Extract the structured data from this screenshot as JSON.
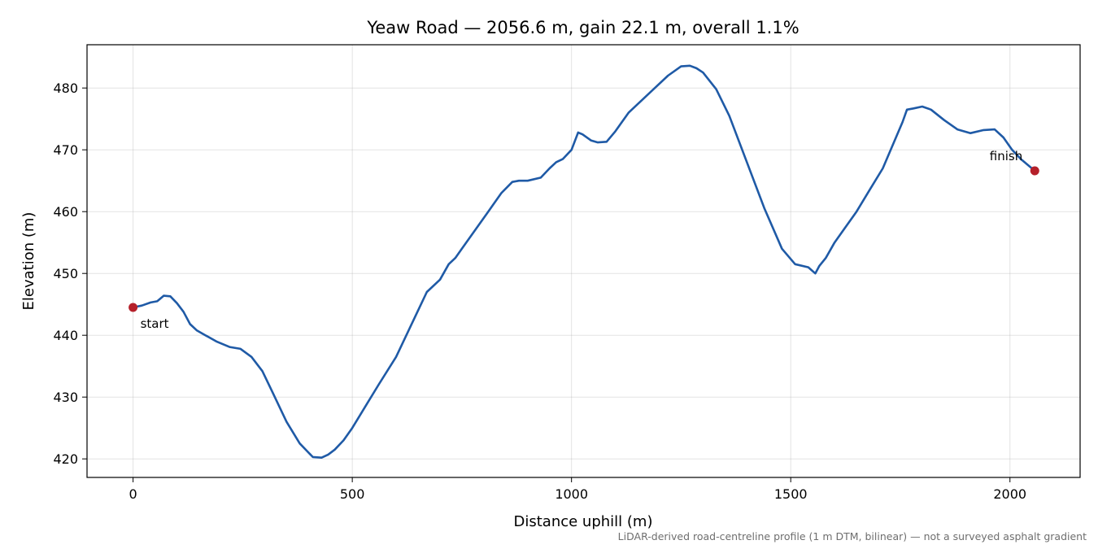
{
  "chart_data": {
    "type": "line",
    "title": "Yeaw Road — 2056.6 m, gain 22.1 m, overall 1.1%",
    "xlabel": "Distance uphill (m)",
    "ylabel": "Elevation (m)",
    "xlim": [
      -105,
      2160
    ],
    "ylim": [
      417,
      487
    ],
    "xticks": [
      0,
      500,
      1000,
      1500,
      2000
    ],
    "yticks": [
      420,
      430,
      440,
      450,
      460,
      470,
      480
    ],
    "grid": true,
    "line_color": "#1f5aa6",
    "marker_color": "#b5202a",
    "series": [
      {
        "x": [
          0,
          20,
          40,
          55,
          70,
          85,
          100,
          115,
          130,
          145,
          165,
          190,
          220,
          245,
          270,
          295,
          320,
          350,
          380,
          410,
          430,
          445,
          460,
          480,
          500,
          530,
          560,
          600,
          640,
          670,
          700,
          720,
          735,
          750,
          780,
          810,
          840,
          865,
          880,
          900,
          930,
          950,
          965,
          980,
          1000,
          1015,
          1025,
          1045,
          1060,
          1080,
          1100,
          1130,
          1160,
          1190,
          1220,
          1250,
          1270,
          1285,
          1300,
          1330,
          1360,
          1400,
          1440,
          1480,
          1510,
          1540,
          1556,
          1565,
          1580,
          1600,
          1620,
          1650,
          1680,
          1710,
          1740,
          1755,
          1765,
          1780,
          1800,
          1820,
          1850,
          1880,
          1910,
          1940,
          1965,
          1985,
          2005,
          2025,
          2056.6
        ],
        "y": [
          444.5,
          444.8,
          445.3,
          445.5,
          446.4,
          446.3,
          445.2,
          443.8,
          441.8,
          440.8,
          440.0,
          439.0,
          438.1,
          437.8,
          436.5,
          434.2,
          430.5,
          426.0,
          422.5,
          420.3,
          420.2,
          420.7,
          421.5,
          423.0,
          425.0,
          428.5,
          432.0,
          436.5,
          442.5,
          447.0,
          449.0,
          451.5,
          452.5,
          454.0,
          457.0,
          460.0,
          463.0,
          464.8,
          465.0,
          465.0,
          465.5,
          467.0,
          468.0,
          468.5,
          470.0,
          472.8,
          472.5,
          471.5,
          471.2,
          471.3,
          473.0,
          476.0,
          478.0,
          480.0,
          482.0,
          483.5,
          483.6,
          483.2,
          482.5,
          479.8,
          475.5,
          468.0,
          460.5,
          454.0,
          451.5,
          451.0,
          450.0,
          451.2,
          452.5,
          455.0,
          457.0,
          460.0,
          463.5,
          467.0,
          472.0,
          474.5,
          476.5,
          476.7,
          477.0,
          476.5,
          474.8,
          473.3,
          472.7,
          473.2,
          473.3,
          472.0,
          470.0,
          468.5,
          466.6
        ]
      }
    ],
    "annotations": [
      {
        "text": "start",
        "x": 0,
        "y": 444.5
      },
      {
        "text": "finish",
        "x": 2056.6,
        "y": 466.6
      }
    ],
    "footnote": "LiDAR-derived road-centreline profile (1 m DTM, bilinear) — not a surveyed asphalt gradient"
  }
}
